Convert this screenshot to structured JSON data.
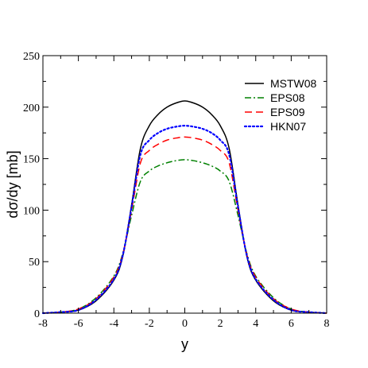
{
  "chart_data": {
    "type": "line",
    "xlabel": "y",
    "ylabel": "dσ/dy [mb]",
    "xlim": [
      -8,
      8
    ],
    "ylim": [
      0,
      250
    ],
    "xticks": [
      -8,
      -6,
      -4,
      -2,
      0,
      2,
      4,
      6,
      8
    ],
    "yticks": [
      0,
      50,
      100,
      150,
      200,
      250
    ],
    "grid": false,
    "legend_position": "top-right",
    "x": [
      -8,
      -7,
      -6,
      -5,
      -4,
      -3.5,
      -3,
      -2.5,
      -2,
      -1.5,
      -1,
      -0.5,
      0,
      0.5,
      1,
      1.5,
      2,
      2.5,
      3,
      3.5,
      4,
      5,
      6,
      7,
      8
    ],
    "series": [
      {
        "name": "MSTW08",
        "color": "#000000",
        "dash": "solid",
        "values": [
          0,
          1,
          3,
          12,
          32,
          55,
          105,
          160,
          182,
          193,
          200,
          204,
          206,
          204,
          200,
          193,
          182,
          160,
          105,
          55,
          32,
          12,
          3,
          1,
          0
        ]
      },
      {
        "name": "EPS08",
        "color": "#008000",
        "dash": "dash-dot",
        "values": [
          0,
          1,
          4,
          15,
          36,
          58,
          95,
          128,
          138,
          143,
          146,
          148,
          149,
          148,
          146,
          143,
          138,
          128,
          95,
          58,
          36,
          15,
          4,
          1,
          0
        ]
      },
      {
        "name": "EPS09",
        "color": "#ff0000",
        "dash": "dashed",
        "values": [
          0,
          1,
          4,
          14,
          35,
          57,
          100,
          146,
          158,
          164,
          168,
          170,
          171,
          170,
          168,
          164,
          158,
          146,
          100,
          57,
          35,
          14,
          4,
          1,
          0
        ]
      },
      {
        "name": "HKN07",
        "color": "#0000ff",
        "dash": "dotted",
        "values": [
          0,
          1,
          3,
          13,
          33,
          56,
          103,
          154,
          168,
          175,
          179,
          181,
          182,
          181,
          179,
          175,
          168,
          154,
          103,
          56,
          33,
          13,
          3,
          1,
          0
        ]
      }
    ]
  }
}
